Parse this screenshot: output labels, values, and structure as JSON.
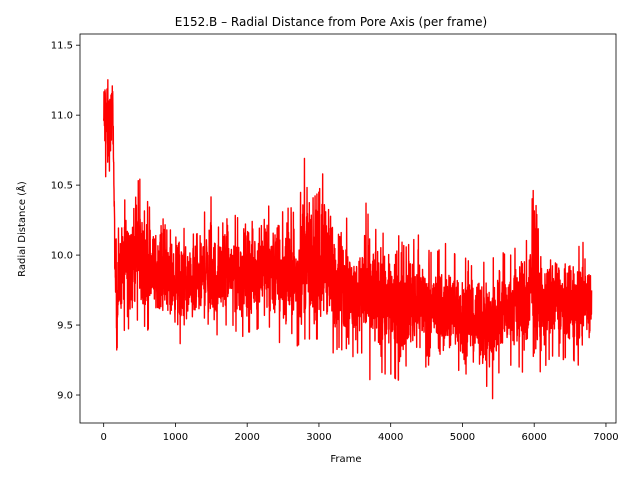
{
  "chart_data": {
    "type": "line",
    "title": "E152.B – Radial Distance from Pore Axis (per frame)",
    "xlabel": "Frame",
    "ylabel": "Radial Distance (Å)",
    "xlim": [
      -330,
      7140
    ],
    "ylim": [
      8.8,
      11.58
    ],
    "xticks": [
      0,
      1000,
      2000,
      3000,
      4000,
      5000,
      6000,
      7000
    ],
    "yticks": [
      9.0,
      9.5,
      10.0,
      10.5,
      11.0,
      11.5
    ],
    "grid": false,
    "legend": "none",
    "series": [
      {
        "color": "#ff0000",
        "n_frames": 6800,
        "envelope": {
          "x": [
            0,
            20,
            40,
            60,
            80,
            100,
            130,
            160,
            180,
            250,
            300,
            400,
            500,
            550,
            600,
            700,
            800,
            900,
            1000,
            1100,
            1200,
            1300,
            1400,
            1500,
            1550,
            1600,
            1700,
            1800,
            1900,
            2000,
            2100,
            2200,
            2300,
            2400,
            2500,
            2600,
            2700,
            2800,
            2900,
            3000,
            3100,
            3200,
            3300,
            3400,
            3500,
            3600,
            3650,
            3700,
            3800,
            3900,
            4000,
            4100,
            4200,
            4300,
            4400,
            4500,
            4600,
            4700,
            4800,
            4900,
            5000,
            5100,
            5200,
            5300,
            5350,
            5400,
            5500,
            5600,
            5700,
            5800,
            5900,
            6000,
            6050,
            6100,
            6200,
            6300,
            6400,
            6500,
            6600,
            6700,
            6800
          ],
          "low": [
            10.55,
            10.6,
            10.5,
            10.4,
            10.5,
            10.6,
            10.7,
            9.6,
            9.2,
            9.5,
            9.45,
            9.5,
            9.55,
            9.4,
            9.45,
            9.55,
            9.5,
            9.45,
            9.4,
            9.35,
            9.45,
            9.4,
            9.45,
            9.3,
            9.4,
            9.45,
            9.5,
            9.5,
            9.4,
            9.45,
            9.45,
            9.5,
            9.5,
            9.35,
            9.4,
            9.4,
            9.35,
            9.4,
            9.4,
            9.4,
            9.35,
            9.3,
            9.35,
            9.2,
            9.3,
            9.3,
            9.2,
            9.1,
            9.2,
            9.15,
            9.15,
            9.1,
            9.2,
            9.25,
            9.2,
            9.2,
            9.25,
            9.15,
            9.15,
            9.2,
            9.15,
            9.15,
            9.15,
            9.1,
            9.05,
            8.93,
            9.15,
            9.25,
            9.2,
            9.2,
            9.1,
            9.3,
            9.2,
            9.15,
            9.25,
            9.3,
            9.25,
            9.3,
            9.2,
            9.3,
            9.3
          ],
          "high": [
            11.35,
            11.4,
            11.43,
            11.37,
            11.3,
            11.35,
            11.3,
            10.15,
            10.1,
            10.35,
            10.4,
            10.45,
            10.55,
            10.45,
            10.4,
            10.25,
            10.3,
            10.15,
            10.25,
            10.2,
            10.15,
            10.15,
            10.3,
            10.42,
            10.25,
            10.2,
            10.25,
            10.3,
            10.25,
            10.35,
            10.3,
            10.4,
            10.35,
            10.45,
            10.3,
            10.35,
            10.25,
            10.7,
            10.4,
            10.45,
            10.7,
            10.3,
            10.35,
            10.25,
            10.1,
            10.2,
            10.38,
            10.3,
            10.25,
            10.15,
            10.25,
            10.15,
            10.05,
            10.1,
            10.15,
            10.05,
            10.0,
            10.05,
            10.1,
            10.0,
            10.0,
            9.95,
            9.85,
            9.95,
            9.9,
            9.95,
            10.05,
            10.0,
            10.0,
            10.15,
            10.1,
            10.52,
            10.2,
            10.1,
            10.05,
            10.1,
            10.0,
            10.15,
            10.05,
            10.1,
            10.05
          ]
        }
      }
    ]
  }
}
